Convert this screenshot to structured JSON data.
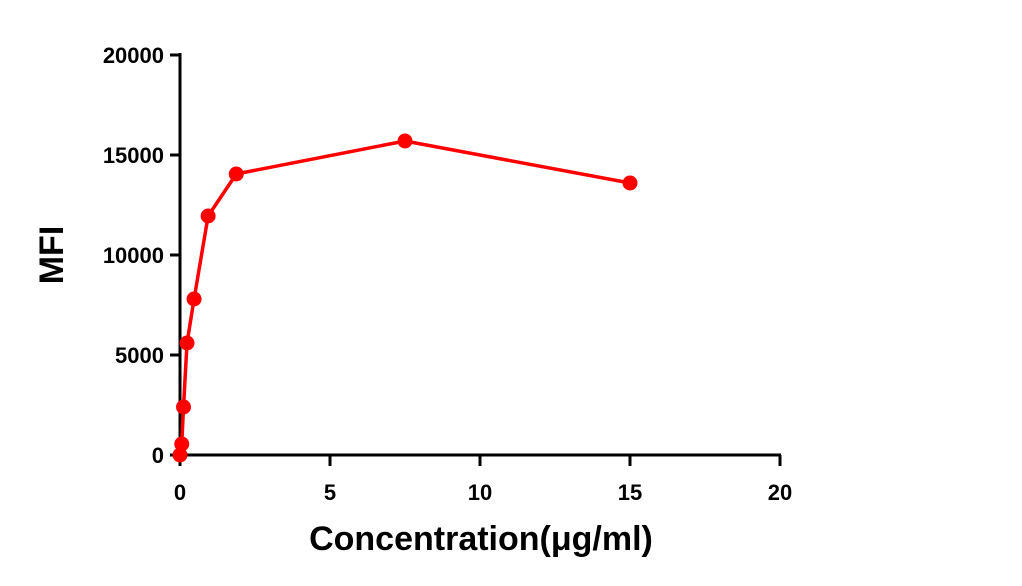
{
  "chart_data": {
    "type": "line",
    "title": "",
    "xlabel": "Concentration(μg/ml)",
    "ylabel": "MFI",
    "xlim": [
      0,
      20
    ],
    "ylim": [
      0,
      20000
    ],
    "x_ticks": [
      0,
      5,
      10,
      15,
      20
    ],
    "y_ticks": [
      0,
      5000,
      10000,
      15000,
      20000
    ],
    "grid": false,
    "legend": null,
    "series": [
      {
        "name": "MFI",
        "color": "#ff0000",
        "marker": "circle",
        "x": [
          0,
          0.0586,
          0.117,
          0.234,
          0.469,
          0.9375,
          1.875,
          7.5,
          15
        ],
        "y": [
          0,
          550,
          2400,
          5600,
          7800,
          11950,
          14050,
          15700,
          13600
        ]
      }
    ]
  },
  "axes": {
    "x_title": "Concentration(μg/ml)",
    "y_title": "MFI",
    "x_tick_labels": [
      "0",
      "5",
      "10",
      "15",
      "20"
    ],
    "y_tick_labels": [
      "0",
      "5000",
      "10000",
      "15000",
      "20000"
    ]
  }
}
